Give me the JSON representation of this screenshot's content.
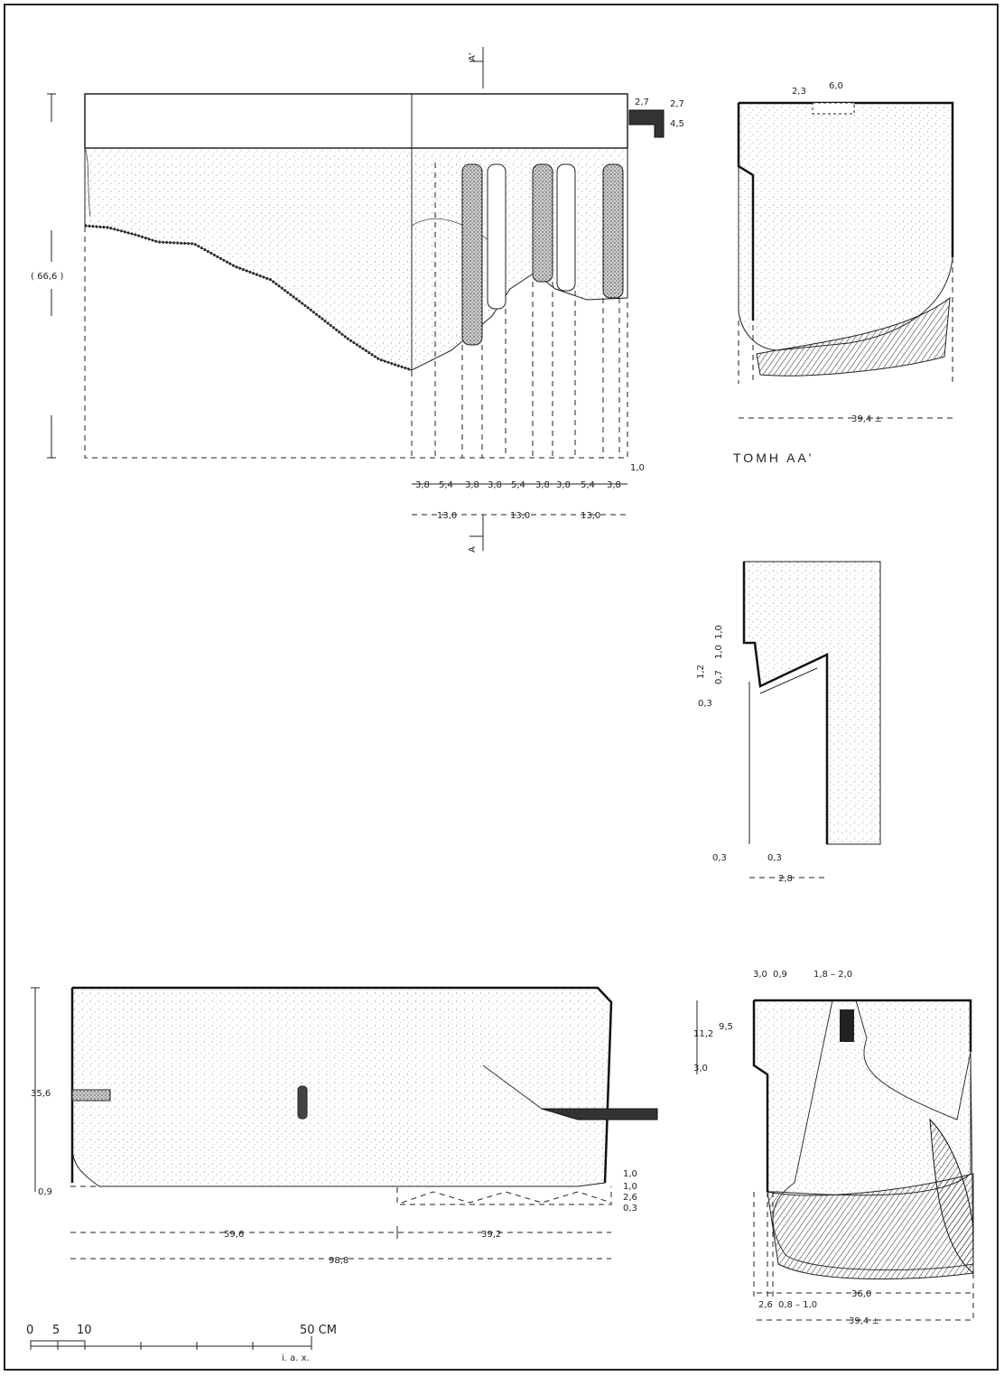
{
  "elevation": {
    "height_label": "( 66,6 )",
    "section_mark_top": "A'",
    "section_mark_bottom": "A",
    "right_dims": [
      "2,7",
      "2,7",
      "4,5"
    ],
    "end_dim": "1,0",
    "flute_dims": [
      "3,8",
      "5,4",
      "3,8",
      "3,8",
      "5,4",
      "3,8",
      "3,8",
      "5,4",
      "3,8"
    ],
    "module_dims": [
      "13,0",
      "13,0",
      "13,0"
    ]
  },
  "section_aa": {
    "title": "ΤΟΜΗ ΑΑ'",
    "top_dims": [
      "2,3",
      "6,0"
    ],
    "width_dim": "39,4 ±"
  },
  "detail": {
    "left_dims": [
      "1,2",
      "0,7",
      "1,0",
      "1,0",
      "0,3"
    ],
    "bottom_dims": [
      "0,3",
      "0,3"
    ],
    "width_dim": "2,8"
  },
  "plan": {
    "height_dim": "35,6",
    "base_dim": "0,9",
    "right_dims": [
      "1,0",
      "1,0",
      "2,6",
      "0,3"
    ],
    "length_dims": [
      "59,6",
      "39,2"
    ],
    "total_dim": "98,8"
  },
  "end_view": {
    "top_dims": [
      "3,0",
      "0,9",
      "1,8 – 2,0"
    ],
    "left_dims": [
      "11,2",
      "9,5",
      "3,0"
    ],
    "bottom_dims": [
      "2,6",
      "0,8 – 1,0",
      "36,0"
    ],
    "width_dim": "39,4 ±"
  },
  "scale": {
    "ticks": [
      "0",
      "5",
      "10"
    ],
    "end_label": "50 CM",
    "credit": "i. a. x."
  }
}
